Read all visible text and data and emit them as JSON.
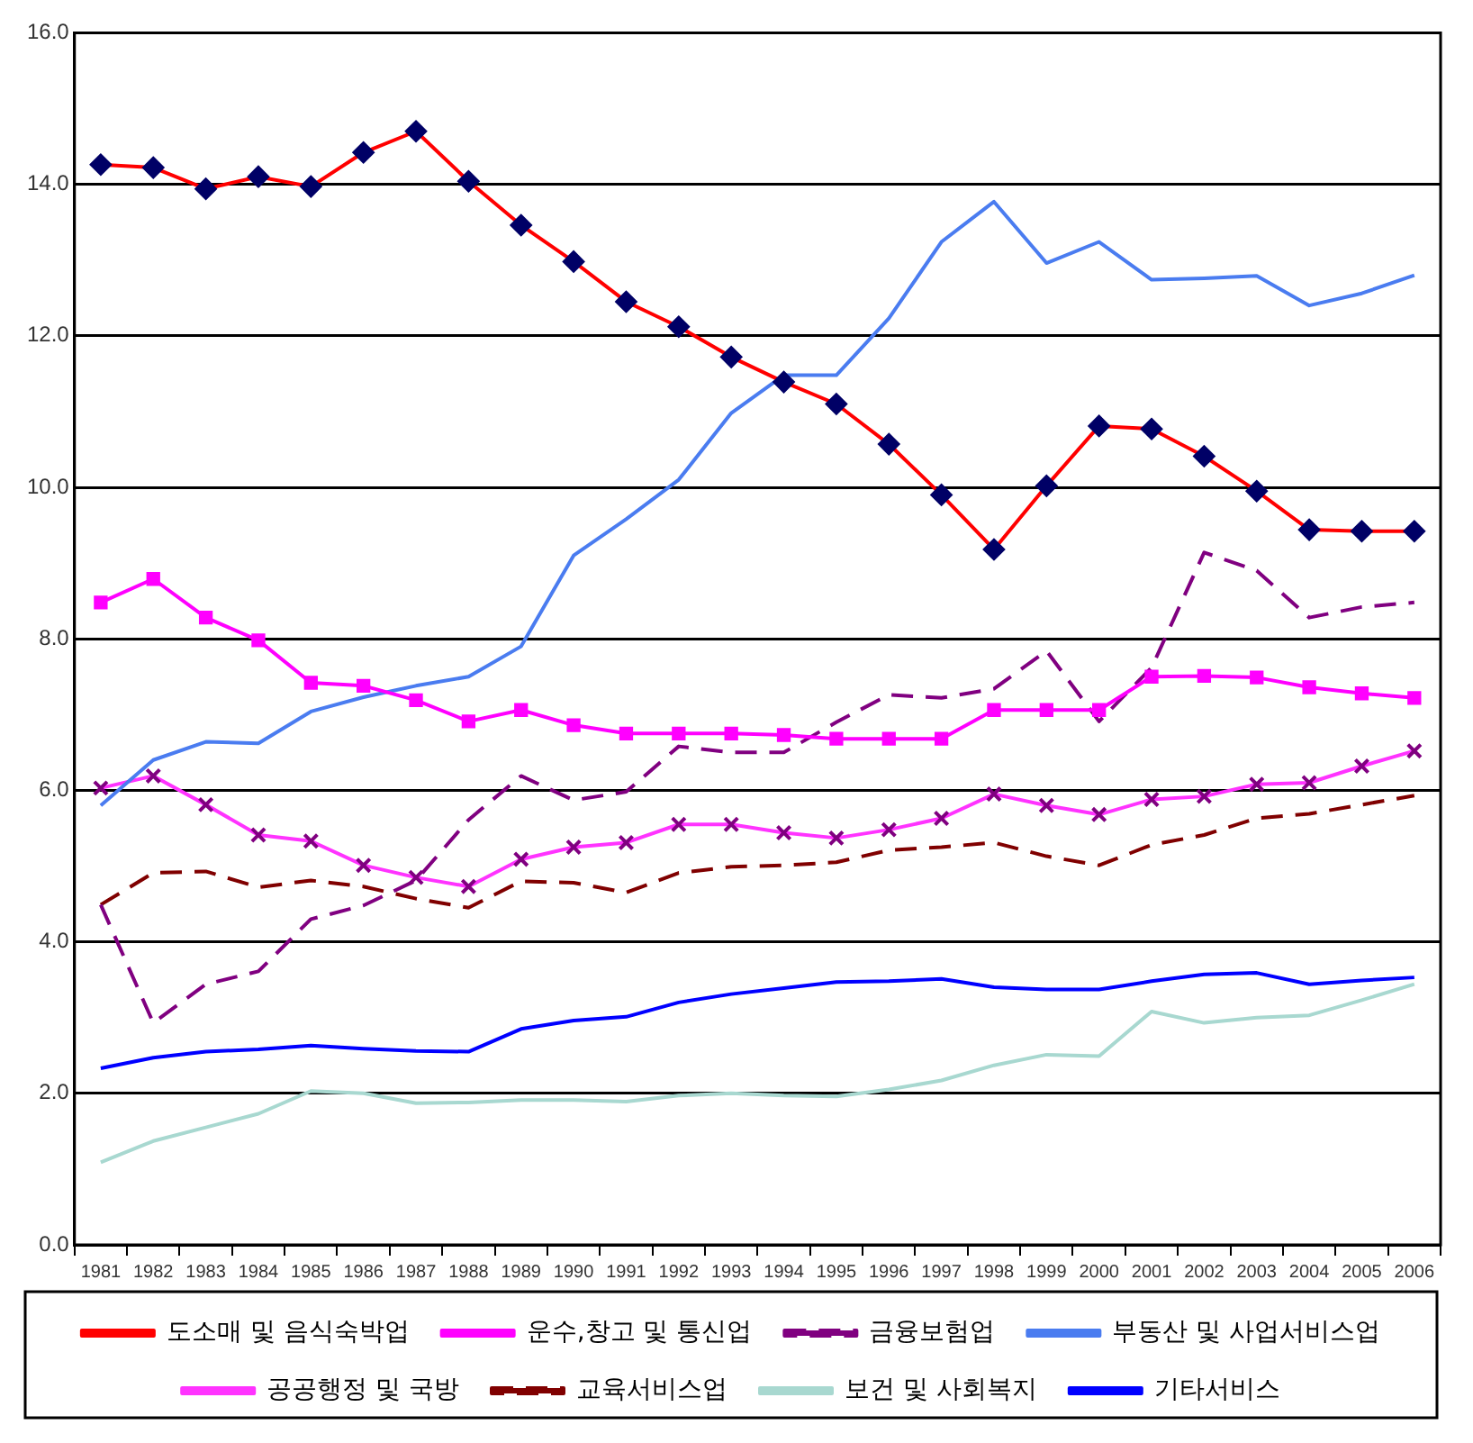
{
  "chart_data": {
    "type": "line",
    "categories": [
      "1981",
      "1982",
      "1983",
      "1984",
      "1985",
      "1986",
      "1987",
      "1988",
      "1989",
      "1990",
      "1991",
      "1992",
      "1993",
      "1994",
      "1995",
      "1996",
      "1997",
      "1998",
      "1999",
      "2000",
      "2001",
      "2002",
      "2003",
      "2004",
      "2005",
      "2006"
    ],
    "ylim": [
      0,
      16
    ],
    "yticks": [
      {
        "value": 0,
        "label": "0.0"
      },
      {
        "value": 2,
        "label": "2.0"
      },
      {
        "value": 4,
        "label": "4.0"
      },
      {
        "value": 6,
        "label": "6.0"
      },
      {
        "value": 8,
        "label": "8.0"
      },
      {
        "value": 10,
        "label": "10.0"
      },
      {
        "value": 12,
        "label": "12.0"
      },
      {
        "value": 14,
        "label": "14.0"
      },
      {
        "value": 16,
        "label": "16.0"
      }
    ],
    "grid": "y",
    "legend": "bottom",
    "series": [
      {
        "name": "도소매 및 음식숙박업",
        "color": "#ff0000",
        "marker": "diamond",
        "line_style": "solid",
        "values": [
          14.26,
          14.22,
          13.94,
          14.1,
          13.97,
          14.42,
          14.7,
          14.04,
          13.46,
          12.98,
          12.45,
          12.12,
          11.72,
          11.39,
          11.1,
          10.57,
          9.9,
          9.18,
          10.02,
          10.81,
          10.77,
          10.41,
          9.95,
          9.44,
          9.42,
          9.42
        ]
      },
      {
        "name": "운수,창고 및 통신업",
        "color": "#ff00ff",
        "marker": "square",
        "line_style": "solid",
        "values": [
          8.48,
          8.79,
          8.28,
          7.98,
          7.42,
          7.38,
          7.19,
          6.91,
          7.06,
          6.86,
          6.75,
          6.75,
          6.75,
          6.73,
          6.68,
          6.68,
          6.68,
          7.06,
          7.06,
          7.06,
          7.5,
          7.51,
          7.49,
          7.36,
          7.28,
          7.22
        ]
      },
      {
        "name": "금융보험업",
        "color": "#800080",
        "marker": "none",
        "line_style": "dashed",
        "values": [
          4.49,
          2.93,
          3.44,
          3.61,
          4.3,
          4.48,
          4.81,
          5.61,
          6.19,
          5.87,
          5.98,
          6.58,
          6.5,
          6.5,
          6.9,
          7.26,
          7.22,
          7.34,
          7.84,
          6.91,
          7.62,
          9.14,
          8.9,
          8.28,
          8.42,
          8.48
        ]
      },
      {
        "name": "부동산 및 사업서비스업",
        "color": "#4a7cf0",
        "marker": "none",
        "line_style": "solid",
        "values": [
          5.8,
          6.4,
          6.64,
          6.62,
          7.04,
          7.23,
          7.38,
          7.5,
          7.9,
          9.1,
          9.58,
          10.1,
          10.98,
          11.48,
          11.48,
          12.23,
          13.24,
          13.77,
          12.96,
          13.24,
          12.74,
          12.76,
          12.79,
          12.4,
          12.56,
          12.8
        ]
      },
      {
        "name": "공공행정 및 국방",
        "color": "#ff33ff",
        "marker": "cross",
        "line_style": "solid",
        "values": [
          6.03,
          6.19,
          5.81,
          5.41,
          5.33,
          5.01,
          4.85,
          4.73,
          5.09,
          5.25,
          5.31,
          5.55,
          5.55,
          5.44,
          5.37,
          5.48,
          5.63,
          5.95,
          5.8,
          5.68,
          5.88,
          5.92,
          6.08,
          6.1,
          6.32,
          6.52
        ]
      },
      {
        "name": "교육서비스업",
        "color": "#800000",
        "marker": "none",
        "line_style": "dashed",
        "values": [
          4.49,
          4.91,
          4.93,
          4.72,
          4.81,
          4.73,
          4.57,
          4.45,
          4.8,
          4.78,
          4.65,
          4.91,
          4.99,
          5.01,
          5.05,
          5.21,
          5.25,
          5.31,
          5.13,
          5.01,
          5.28,
          5.41,
          5.63,
          5.69,
          5.81,
          5.93
        ]
      },
      {
        "name": "보건 및 사회복지",
        "color": "#a8d8d0",
        "marker": "none",
        "line_style": "solid",
        "values": [
          1.09,
          1.37,
          1.55,
          1.73,
          2.03,
          2.0,
          1.87,
          1.88,
          1.91,
          1.91,
          1.89,
          1.97,
          2.0,
          1.97,
          1.96,
          2.05,
          2.17,
          2.37,
          2.51,
          2.49,
          3.08,
          2.93,
          3.0,
          3.03,
          3.23,
          3.44
        ]
      },
      {
        "name": "기타서비스",
        "color": "#0000ff",
        "marker": "none",
        "line_style": "solid",
        "values": [
          2.33,
          2.47,
          2.55,
          2.58,
          2.63,
          2.59,
          2.56,
          2.55,
          2.85,
          2.96,
          3.01,
          3.2,
          3.31,
          3.39,
          3.47,
          3.48,
          3.51,
          3.4,
          3.37,
          3.37,
          3.48,
          3.57,
          3.59,
          3.44,
          3.49,
          3.53
        ]
      }
    ]
  }
}
